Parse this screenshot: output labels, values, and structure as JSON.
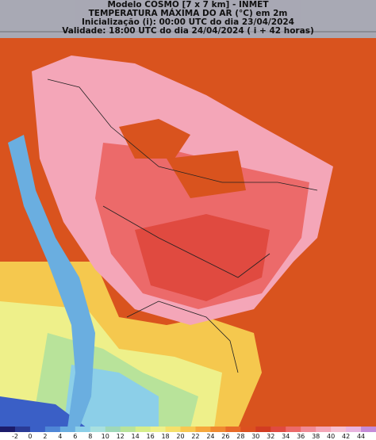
{
  "header": {
    "lines": [
      "Modelo COSMO [7 x 7 km] - INMET",
      "TEMPERATURA MÁXIMA DO AR (°C) em 2m",
      "Inicialização (i): 00:00 UTC do dia 23/04/2024",
      "Validade: 18:00 UTC do dia 24/04/2024 ( i + 42 horas)"
    ]
  },
  "legend": {
    "labels": [
      "-2",
      "0",
      "2",
      "4",
      "6",
      "8",
      "10",
      "12",
      "14",
      "16",
      "18",
      "20",
      "22",
      "24",
      "26",
      "28",
      "30",
      "32",
      "34",
      "36",
      "38",
      "40",
      "42",
      "44"
    ],
    "colors": [
      "#1c1c6a",
      "#2a3b96",
      "#3a5fc6",
      "#4f86d6",
      "#6aaee0",
      "#8ccfe8",
      "#a8e0df",
      "#9fd8b8",
      "#b8e39a",
      "#d6ee8a",
      "#eef08a",
      "#f5e06a",
      "#f8c850",
      "#f6a83c",
      "#f08a30",
      "#e86a28",
      "#dc5020",
      "#d23c22",
      "#e04a40",
      "#ec6a6a",
      "#f08a96",
      "#f4a6b8",
      "#f6c0d2",
      "#e9b4e0",
      "#c48ad8"
    ]
  }
}
